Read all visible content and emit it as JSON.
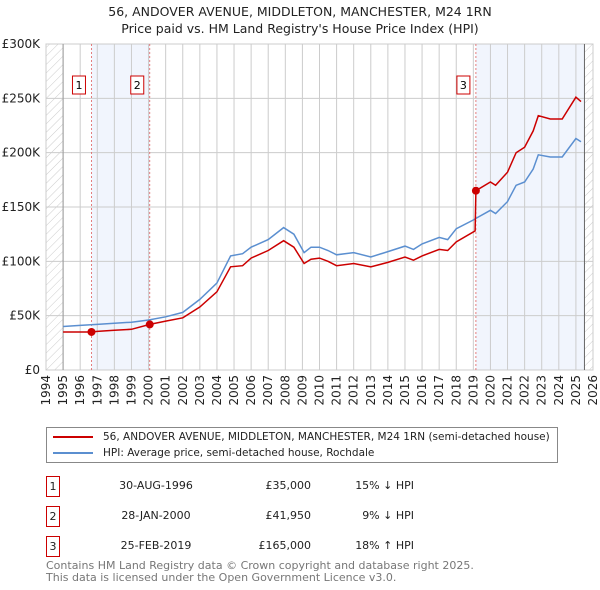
{
  "chart_data": {
    "type": "line",
    "title": "56, ANDOVER AVENUE, MIDDLETON, MANCHESTER, M24 1RN",
    "subtitle": "Price paid vs. HM Land Registry's House Price Index (HPI)",
    "xlim": [
      1994,
      2026
    ],
    "ylim": [
      0,
      300000
    ],
    "x_ticks": [
      "1994",
      "1995",
      "1996",
      "1997",
      "1998",
      "1999",
      "2000",
      "2001",
      "2002",
      "2003",
      "2004",
      "2005",
      "2006",
      "2007",
      "2008",
      "2009",
      "2010",
      "2011",
      "2012",
      "2013",
      "2014",
      "2015",
      "2016",
      "2017",
      "2018",
      "2019",
      "2020",
      "2021",
      "2022",
      "2023",
      "2024",
      "2025",
      "2026"
    ],
    "y_ticks": [
      {
        "v": 0,
        "label": "£0"
      },
      {
        "v": 50000,
        "label": "£50K"
      },
      {
        "v": 100000,
        "label": "£100K"
      },
      {
        "v": 150000,
        "label": "£150K"
      },
      {
        "v": 200000,
        "label": "£200K"
      },
      {
        "v": 250000,
        "label": "£250K"
      },
      {
        "v": 300000,
        "label": "£300K"
      }
    ],
    "grid": true,
    "series": [
      {
        "name": "56, ANDOVER AVENUE, MIDDLETON, MANCHESTER, M24 1RN (semi-detached house)",
        "color": "#cc0000",
        "x": [
          1995,
          1996.66,
          1997,
          1998,
          1999,
          2000.07,
          2001,
          2002,
          2003,
          2004,
          2004.8,
          2005.5,
          2006,
          2007,
          2007.9,
          2008.5,
          2009.1,
          2009.5,
          2010,
          2010.5,
          2011,
          2012,
          2013,
          2014,
          2015,
          2015.5,
          2016,
          2017,
          2017.5,
          2018,
          2019.1,
          2019.15,
          2020,
          2020.3,
          2021,
          2021.5,
          2022,
          2022.5,
          2022.8,
          2023.5,
          2024.2,
          2025,
          2025.3
        ],
        "y": [
          35000,
          35000,
          35500,
          36500,
          37500,
          41950,
          45000,
          48000,
          58000,
          72000,
          95000,
          96000,
          103000,
          110000,
          119000,
          113000,
          98000,
          102000,
          103000,
          100000,
          96000,
          98000,
          95000,
          99000,
          104000,
          101000,
          105000,
          111000,
          110000,
          118000,
          128000,
          165000,
          173000,
          170000,
          182000,
          200000,
          205000,
          220000,
          234000,
          231000,
          231000,
          251000,
          247000
        ]
      },
      {
        "name": "HPI: Average price, semi-detached house, Rochdale",
        "color": "#5b8fd0",
        "x": [
          1995,
          1996,
          1997,
          1998,
          1999,
          2000,
          2001,
          2002,
          2003,
          2004,
          2004.8,
          2005.5,
          2006,
          2007,
          2007.9,
          2008.5,
          2009.1,
          2009.5,
          2010,
          2010.5,
          2011,
          2012,
          2013,
          2014,
          2015,
          2015.5,
          2016,
          2017,
          2017.5,
          2018,
          2019,
          2019.2,
          2020,
          2020.3,
          2021,
          2021.5,
          2022,
          2022.5,
          2022.8,
          2023.5,
          2024.2,
          2025,
          2025.3
        ],
        "y": [
          40000,
          41000,
          42000,
          43000,
          44000,
          46000,
          49000,
          53000,
          65000,
          80000,
          105000,
          107000,
          113000,
          120000,
          131000,
          125000,
          108000,
          113000,
          113000,
          110000,
          106000,
          108000,
          104000,
          109000,
          114000,
          111000,
          116000,
          122000,
          120000,
          130000,
          138000,
          140000,
          147000,
          144000,
          155000,
          170000,
          173000,
          185000,
          198000,
          196000,
          196000,
          213000,
          210000
        ]
      }
    ],
    "sales": [
      {
        "id": "1",
        "x": 1996.66,
        "y": 35000,
        "date": "30-AUG-1996",
        "price": "£35,000",
        "hpi": "15% ↓ HPI"
      },
      {
        "id": "2",
        "x": 2000.07,
        "y": 41950,
        "date": "28-JAN-2000",
        "price": "£41,950",
        "hpi": "9% ↓ HPI"
      },
      {
        "id": "3",
        "x": 2019.15,
        "y": 165000,
        "date": "25-FEB-2019",
        "price": "£165,000",
        "hpi": "18% ↑ HPI"
      }
    ],
    "shaded": [
      [
        1996.66,
        2000.07
      ],
      [
        2019.15,
        2025.5
      ]
    ],
    "data_range": [
      1995,
      2025.5
    ],
    "legend_position": "below"
  },
  "footer": [
    "Contains HM Land Registry data © Crown copyright and database right 2025.",
    "This data is licensed under the Open Government Licence v3.0."
  ]
}
